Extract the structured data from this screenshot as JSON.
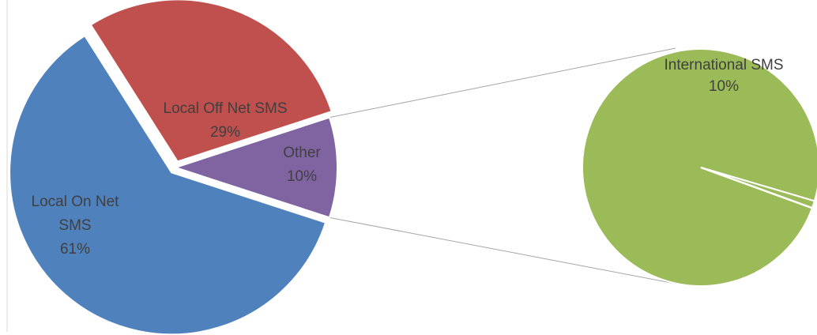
{
  "chart_data": {
    "type": "pie",
    "subtype": "pie-of-pie",
    "title": "",
    "slices": [
      {
        "label_lines": [
          "Local On Net",
          "SMS"
        ],
        "pct_label": "61%",
        "value": 61,
        "color": "#4f81bd",
        "exploded": true
      },
      {
        "label_lines": [
          "Local Off Net SMS"
        ],
        "pct_label": "29%",
        "value": 29,
        "color": "#c0504d",
        "exploded": true
      },
      {
        "label_lines": [
          "Other"
        ],
        "pct_label": "10%",
        "value": 10,
        "color": "#8064a2",
        "exploded": false
      }
    ],
    "secondary_pie": {
      "of": "Other",
      "slices": [
        {
          "label_lines": [
            "International SMS"
          ],
          "pct_label": "10%",
          "value": 10,
          "color": "#9bbb59"
        },
        {
          "label_lines": [],
          "pct_label": "",
          "value": 0.1,
          "color": "#9bbb59"
        }
      ]
    },
    "colors": {
      "local_on_net": "#4f81bd",
      "local_off_net": "#c0504d",
      "other": "#8064a2",
      "international": "#9bbb59",
      "connector": "#a6a6a6",
      "label_text": "#404040"
    }
  }
}
